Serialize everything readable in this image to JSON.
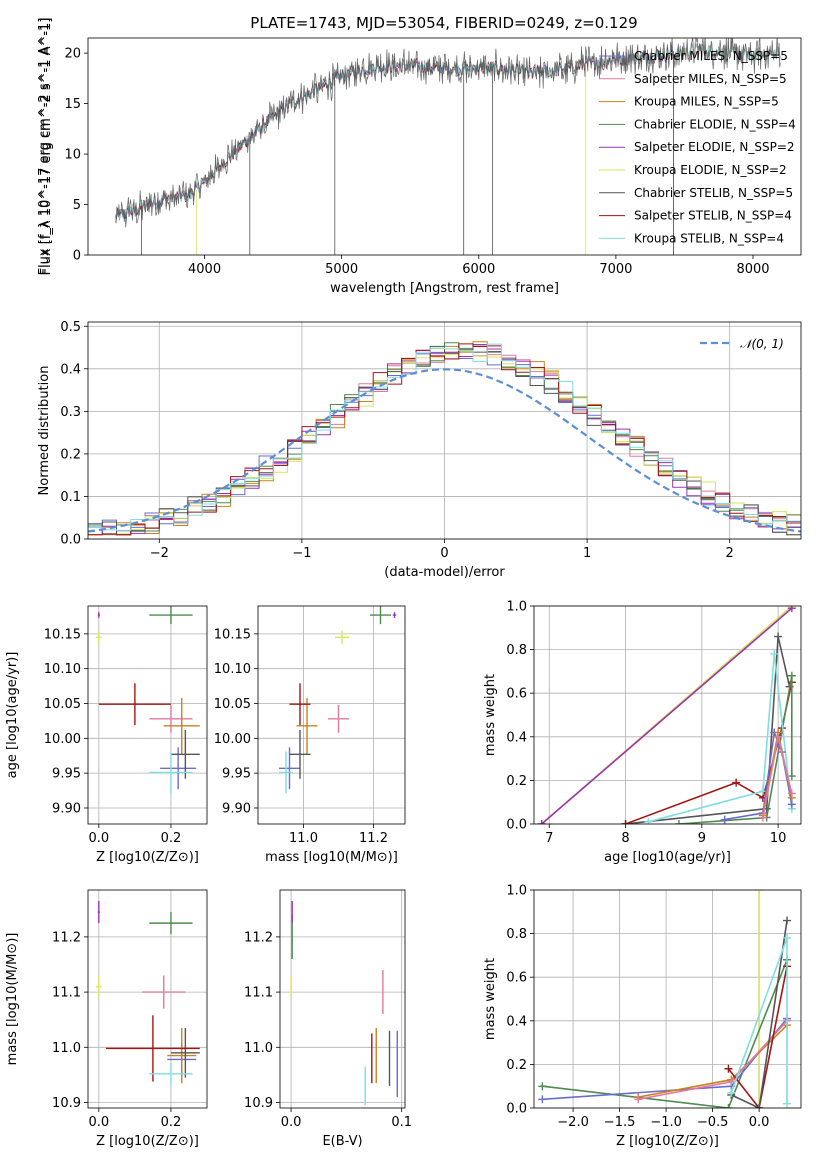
{
  "figure": {
    "title": "PLATE=1743, MJD=53054, FIBERID=0249, z=0.129",
    "colors": {
      "Chabrier MILES": "#6a6ccf",
      "Salpeter MILES": "#e07aa0",
      "Kroupa MILES": "#c8821e",
      "Chabrier ELODIE": "#4f8a4f",
      "Salpeter ELODIE": "#9b32b8",
      "Kroupa ELODIE": "#d8e45a",
      "Chabrier STELIB": "#555555",
      "Salpeter STELIB": "#a31515",
      "Kroupa STELIB": "#7fdde3",
      "normal": "#5b8fd6",
      "grid": "#b0b0b0"
    }
  },
  "chart_data": [
    {
      "id": "spectrum",
      "type": "line",
      "title": "PLATE=1743, MJD=53054, FIBERID=0249, z=0.129",
      "xlabel": "wavelength [Angstrom, rest frame]",
      "ylabel": "Flux [f_λ 10^-17 erg cm^-2 s^-1 A^-1]",
      "xlim": [
        3150,
        8350
      ],
      "ylim": [
        0,
        21.5
      ],
      "xticks": [
        4000,
        5000,
        6000,
        7000,
        8000
      ],
      "yticks": [
        0,
        5,
        10,
        15,
        20
      ],
      "grid": false,
      "legend_position": "top-right",
      "legend": [
        "Chabrier MILES, N_SSP=5",
        "Salpeter MILES, N_SSP=5",
        "Kroupa MILES, N_SSP=5",
        "Chabrier ELODIE, N_SSP=4",
        "Salpeter ELODIE, N_SSP=2",
        "Kroupa ELODIE, N_SSP=2",
        "Chabrier STELIB, N_SSP=5",
        "Salpeter STELIB, N_SSP=4",
        "Kroupa STELIB, N_SSP=4"
      ],
      "continuum": {
        "x": [
          3350,
          3500,
          3700,
          3900,
          4000,
          4200,
          4400,
          4600,
          4800,
          5000,
          5200,
          5400,
          5600,
          5800,
          6000,
          6200,
          6400,
          6600,
          6800,
          7000,
          7200,
          7400,
          7600,
          7800,
          8000,
          8200
        ],
        "y": [
          3.8,
          4.5,
          5.5,
          6.0,
          7.2,
          10.0,
          12.5,
          14.8,
          16.3,
          17.7,
          18.5,
          18.8,
          18.7,
          18.4,
          18.6,
          18.4,
          18.0,
          18.4,
          19.0,
          19.4,
          19.6,
          19.9,
          20.4,
          20.1,
          19.8,
          20.0
        ]
      }
    },
    {
      "id": "residuals",
      "type": "line",
      "xlabel": "(data-model)/error",
      "ylabel": "Normed distribution",
      "xlim": [
        -2.5,
        2.5
      ],
      "ylim": [
        0,
        0.51
      ],
      "xticks": [
        -2,
        -1,
        0,
        1,
        2
      ],
      "yticks": [
        0.0,
        0.1,
        0.2,
        0.3,
        0.4,
        0.5
      ],
      "grid": true,
      "legend_position": "top-right",
      "legend": [
        "𝒩(0, 1)"
      ],
      "series": [
        {
          "name": "𝒩(0, 1)",
          "x": [
            -2.5,
            -2.0,
            -1.5,
            -1.0,
            -0.5,
            0.0,
            0.5,
            1.0,
            1.5,
            2.0,
            2.5
          ],
          "y": [
            0.018,
            0.054,
            0.13,
            0.242,
            0.352,
            0.399,
            0.352,
            0.242,
            0.13,
            0.054,
            0.018
          ]
        }
      ],
      "histogram_bin_width": 0.1
    },
    {
      "id": "age-vs-Z",
      "type": "scatter",
      "xlabel": "Z [log10(Z/Z⊙)]",
      "ylabel": "age  [log10(age/yr)]",
      "xlim": [
        -0.03,
        0.3
      ],
      "ylim": [
        9.877,
        10.19
      ],
      "xticks": [
        0.0,
        0.2
      ],
      "yticks": [
        9.9,
        9.95,
        10.0,
        10.05,
        10.1,
        10.15
      ],
      "grid": true,
      "points": [
        {
          "model": "Chabrier MILES",
          "x": 0.22,
          "y": 9.957,
          "xerr": 0.05,
          "yerr": 0.03
        },
        {
          "model": "Salpeter MILES",
          "x": 0.2,
          "y": 10.028,
          "xerr": 0.06,
          "yerr": 0.02
        },
        {
          "model": "Kroupa MILES",
          "x": 0.23,
          "y": 10.018,
          "xerr": 0.05,
          "yerr": 0.04
        },
        {
          "model": "Chabrier ELODIE",
          "x": 0.2,
          "y": 10.177,
          "xerr": 0.06,
          "yerr": 0.013
        },
        {
          "model": "Salpeter ELODIE",
          "x": 0.0,
          "y": 10.177,
          "xerr": 0.003,
          "yerr": 0.004
        },
        {
          "model": "Kroupa ELODIE",
          "x": 0.0,
          "y": 10.145,
          "xerr": 0.008,
          "yerr": 0.01
        },
        {
          "model": "Chabrier STELIB",
          "x": 0.24,
          "y": 9.977,
          "xerr": 0.04,
          "yerr": 0.035
        },
        {
          "model": "Salpeter STELIB",
          "x": 0.1,
          "y": 10.049,
          "xerr": 0.1,
          "yerr": 0.03
        },
        {
          "model": "Kroupa STELIB",
          "x": 0.2,
          "y": 9.951,
          "xerr": 0.06,
          "yerr": 0.03
        }
      ]
    },
    {
      "id": "age-vs-mass",
      "type": "scatter",
      "xlabel": "mass [log10(M/M⊙)]",
      "ylabel": "",
      "xlim": [
        10.87,
        11.29
      ],
      "ylim": [
        9.877,
        10.19
      ],
      "xticks": [
        11.0,
        11.2
      ],
      "yticks": [
        9.9,
        9.95,
        10.0,
        10.05,
        10.1,
        10.15
      ],
      "grid": true,
      "points": [
        {
          "model": "Chabrier MILES",
          "x": 10.96,
          "y": 9.957,
          "xerr": 0.03,
          "yerr": 0.03
        },
        {
          "model": "Salpeter MILES",
          "x": 11.1,
          "y": 10.028,
          "xerr": 0.03,
          "yerr": 0.02
        },
        {
          "model": "Kroupa MILES",
          "x": 11.01,
          "y": 10.018,
          "xerr": 0.03,
          "yerr": 0.04
        },
        {
          "model": "Chabrier ELODIE",
          "x": 11.22,
          "y": 10.177,
          "xerr": 0.03,
          "yerr": 0.013
        },
        {
          "model": "Salpeter ELODIE",
          "x": 11.26,
          "y": 10.177,
          "xerr": 0.005,
          "yerr": 0.004
        },
        {
          "model": "Kroupa ELODIE",
          "x": 11.11,
          "y": 10.145,
          "xerr": 0.02,
          "yerr": 0.01
        },
        {
          "model": "Chabrier STELIB",
          "x": 10.99,
          "y": 9.977,
          "xerr": 0.03,
          "yerr": 0.035
        },
        {
          "model": "Salpeter STELIB",
          "x": 10.99,
          "y": 10.049,
          "xerr": 0.03,
          "yerr": 0.03
        },
        {
          "model": "Kroupa STELIB",
          "x": 10.95,
          "y": 9.951,
          "xerr": 0.02,
          "yerr": 0.03
        }
      ]
    },
    {
      "id": "mass-weight-vs-age",
      "type": "line",
      "xlabel": "age  [log10(age/yr)]",
      "ylabel": "mass weight",
      "xlim": [
        6.8,
        10.3
      ],
      "ylim": [
        0,
        1.0
      ],
      "xticks": [
        7,
        8,
        9,
        10
      ],
      "yticks": [
        0.0,
        0.2,
        0.4,
        0.6,
        0.8,
        1.0
      ],
      "grid": true,
      "series": [
        {
          "name": "Kroupa ELODIE",
          "x": [
            6.9,
            10.18
          ],
          "y": [
            0.0,
            1.0
          ]
        },
        {
          "name": "Salpeter ELODIE",
          "x": [
            6.9,
            10.18
          ],
          "y": [
            0.0,
            0.99
          ]
        },
        {
          "name": "Chabrier STELIB",
          "x": [
            8.0,
            9.85,
            10.0,
            10.15
          ],
          "y": [
            0.0,
            0.07,
            0.86,
            0.63
          ]
        },
        {
          "name": "Salpeter STELIB",
          "x": [
            8.0,
            9.45,
            9.8,
            10.05,
            10.18
          ],
          "y": [
            0.0,
            0.19,
            0.12,
            0.44,
            0.65
          ]
        },
        {
          "name": "Chabrier ELODIE",
          "x": [
            8.7,
            9.85,
            10.18,
            10.18
          ],
          "y": [
            0.0,
            0.03,
            0.68,
            0.22
          ]
        },
        {
          "name": "Kroupa STELIB",
          "x": [
            8.3,
            9.8,
            9.95,
            10.18
          ],
          "y": [
            0.01,
            0.15,
            0.78,
            0.07
          ]
        },
        {
          "name": "Chabrier MILES",
          "x": [
            9.3,
            9.8,
            9.95,
            10.05,
            10.18
          ],
          "y": [
            0.02,
            0.05,
            0.42,
            0.33,
            0.09
          ]
        },
        {
          "name": "Kroupa MILES",
          "x": [
            9.8,
            10.0,
            10.18
          ],
          "y": [
            0.04,
            0.42,
            0.12
          ]
        },
        {
          "name": "Salpeter MILES",
          "x": [
            9.8,
            10.0,
            10.18
          ],
          "y": [
            0.03,
            0.4,
            0.14
          ]
        }
      ]
    },
    {
      "id": "mass-vs-Z",
      "type": "scatter",
      "xlabel": "Z [log10(Z/Z⊙)]",
      "ylabel": "mass [log10(M/M⊙)]",
      "xlim": [
        -0.03,
        0.3
      ],
      "ylim": [
        10.89,
        11.285
      ],
      "xticks": [
        0.0,
        0.2
      ],
      "yticks": [
        10.9,
        11.0,
        11.1,
        11.2
      ],
      "grid": true,
      "points": [
        {
          "model": "Chabrier MILES",
          "x": 0.23,
          "y": 10.978,
          "xerr": 0.04,
          "yerr": 0.03
        },
        {
          "model": "Salpeter MILES",
          "x": 0.18,
          "y": 11.1,
          "xerr": 0.06,
          "yerr": 0.03
        },
        {
          "model": "Kroupa MILES",
          "x": 0.23,
          "y": 10.985,
          "xerr": 0.04,
          "yerr": 0.05
        },
        {
          "model": "Chabrier ELODIE",
          "x": 0.2,
          "y": 11.225,
          "xerr": 0.06,
          "yerr": 0.02
        },
        {
          "model": "Salpeter ELODIE",
          "x": 0.0,
          "y": 11.245,
          "xerr": 0.003,
          "yerr": 0.02
        },
        {
          "model": "Kroupa ELODIE",
          "x": 0.0,
          "y": 11.11,
          "xerr": 0.008,
          "yerr": 0.02
        },
        {
          "model": "Chabrier STELIB",
          "x": 0.24,
          "y": 10.99,
          "xerr": 0.04,
          "yerr": 0.045
        },
        {
          "model": "Salpeter STELIB",
          "x": 0.15,
          "y": 10.998,
          "xerr": 0.13,
          "yerr": 0.06
        },
        {
          "model": "Kroupa STELIB",
          "x": 0.2,
          "y": 10.952,
          "xerr": 0.06,
          "yerr": 0.02
        }
      ]
    },
    {
      "id": "mass-vs-EBV",
      "type": "scatter",
      "xlabel": "E(B-V)",
      "ylabel": "",
      "xlim": [
        -0.01,
        0.103
      ],
      "ylim": [
        10.89,
        11.285
      ],
      "xticks": [
        0.0,
        0.1
      ],
      "yticks": [
        10.9,
        11.0,
        11.1,
        11.2
      ],
      "grid": true,
      "points": [
        {
          "model": "Chabrier MILES",
          "x": 0.096,
          "y": 10.97,
          "yerr": 0.06
        },
        {
          "model": "Salpeter MILES",
          "x": 0.083,
          "y": 11.1,
          "yerr": 0.04
        },
        {
          "model": "Kroupa MILES",
          "x": 0.077,
          "y": 10.985,
          "yerr": 0.05
        },
        {
          "model": "Chabrier ELODIE",
          "x": 0.001,
          "y": 11.2,
          "yerr": 0.04
        },
        {
          "model": "Salpeter ELODIE",
          "x": 0.001,
          "y": 11.245,
          "yerr": 0.02
        },
        {
          "model": "Kroupa ELODIE",
          "x": 0.0,
          "y": 11.11,
          "yerr": 0.02
        },
        {
          "model": "Chabrier STELIB",
          "x": 0.089,
          "y": 10.98,
          "yerr": 0.05
        },
        {
          "model": "Salpeter STELIB",
          "x": 0.073,
          "y": 10.98,
          "yerr": 0.045
        },
        {
          "model": "Kroupa STELIB",
          "x": 0.067,
          "y": 10.93,
          "yerr": 0.035
        }
      ]
    },
    {
      "id": "mass-weight-vs-Z",
      "type": "line",
      "xlabel": "Z [log10(Z/Z⊙)]",
      "ylabel": "mass weight",
      "xlim": [
        -2.42,
        0.45
      ],
      "ylim": [
        0,
        1.0
      ],
      "xticks": [
        -2.0,
        -1.5,
        -1.0,
        -0.5,
        0.0
      ],
      "yticks": [
        0.0,
        0.2,
        0.4,
        0.6,
        0.8,
        1.0
      ],
      "grid": true,
      "series": [
        {
          "name": "Kroupa ELODIE",
          "x": [
            0.0,
            0.0
          ],
          "y": [
            0.0,
            1.0
          ]
        },
        {
          "name": "Chabrier ELODIE",
          "x": [
            -2.33,
            -0.33,
            0.3
          ],
          "y": [
            0.1,
            0.0,
            0.68
          ]
        },
        {
          "name": "Chabrier MILES",
          "x": [
            -2.33,
            -0.3,
            0.3
          ],
          "y": [
            0.04,
            0.1,
            0.41
          ]
        },
        {
          "name": "Kroupa MILES",
          "x": [
            -1.3,
            -0.3,
            0.3
          ],
          "y": [
            0.05,
            0.13,
            0.38
          ]
        },
        {
          "name": "Salpeter MILES",
          "x": [
            -1.3,
            -0.3,
            0.3
          ],
          "y": [
            0.04,
            0.12,
            0.4
          ]
        },
        {
          "name": "Salpeter STELIB",
          "x": [
            -0.33,
            0.0,
            0.3
          ],
          "y": [
            0.18,
            0.0,
            0.65
          ]
        },
        {
          "name": "Chabrier STELIB",
          "x": [
            -0.3,
            0.0,
            0.3
          ],
          "y": [
            0.06,
            0.0,
            0.86
          ]
        },
        {
          "name": "Kroupa STELIB",
          "x": [
            -0.3,
            0.3,
            0.3
          ],
          "y": [
            0.07,
            0.78,
            0.02
          ]
        }
      ]
    }
  ]
}
